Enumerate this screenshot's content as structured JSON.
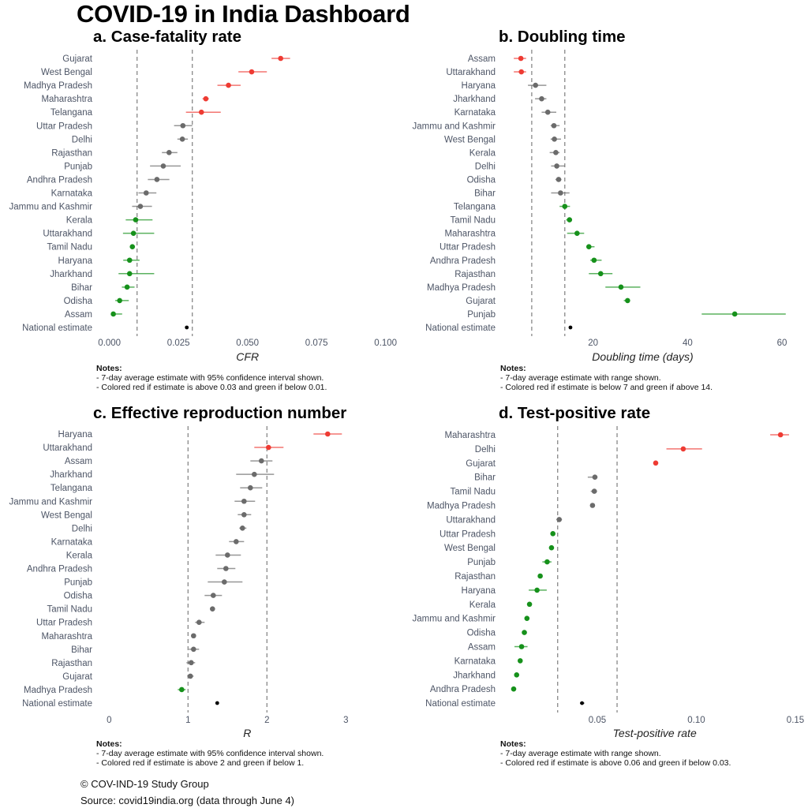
{
  "title": "COVID-19 in India Dashboard",
  "footer": {
    "credit": "© COV-IND-19 Study Group",
    "source": "Source: covid19india.org (data through June  4)"
  },
  "colors": {
    "red": "#ee3b33",
    "green": "#16911b",
    "gray": "#6b6b6b",
    "national": "#000000",
    "threshold": "#888888"
  },
  "chart_data": [
    {
      "id": "a",
      "type": "scatter",
      "title": "a. Case-fatality rate",
      "xlabel": "CFR",
      "xlim": [
        0,
        0.1
      ],
      "ticks": [
        0.0,
        0.025,
        0.05,
        0.075,
        0.1
      ],
      "tick_labels": [
        "0.000",
        "0.025",
        "0.050",
        "0.075",
        "0.100"
      ],
      "thresholds": [
        0.01,
        0.03
      ],
      "notes_head": "Notes:",
      "notes": [
        "- 7-day average estimate with 95% confidence interval shown.",
        "- Colored red if estimate is above 0.03 and green if below 0.01."
      ],
      "rows": [
        {
          "label": "Gujarat",
          "value": 0.062,
          "lo": 0.0587,
          "hi": 0.0654,
          "status": "red"
        },
        {
          "label": "West Bengal",
          "value": 0.0515,
          "lo": 0.0467,
          "hi": 0.057,
          "status": "red"
        },
        {
          "label": "Madhya Pradesh",
          "value": 0.0431,
          "lo": 0.0391,
          "hi": 0.0475,
          "status": "red"
        },
        {
          "label": "Maharashtra",
          "value": 0.0349,
          "lo": 0.0337,
          "hi": 0.036,
          "status": "red"
        },
        {
          "label": "Telangana",
          "value": 0.0333,
          "lo": 0.0277,
          "hi": 0.0403,
          "status": "red"
        },
        {
          "label": "Uttar Pradesh",
          "value": 0.0266,
          "lo": 0.0234,
          "hi": 0.03,
          "status": "gray"
        },
        {
          "label": "Delhi",
          "value": 0.0264,
          "lo": 0.0246,
          "hi": 0.0284,
          "status": "gray"
        },
        {
          "label": "Rajasthan",
          "value": 0.0216,
          "lo": 0.019,
          "hi": 0.0246,
          "status": "gray"
        },
        {
          "label": "Punjab",
          "value": 0.0195,
          "lo": 0.0147,
          "hi": 0.0258,
          "status": "gray"
        },
        {
          "label": "Andhra Pradesh",
          "value": 0.0172,
          "lo": 0.0139,
          "hi": 0.0217,
          "status": "gray"
        },
        {
          "label": "Karnataka",
          "value": 0.0133,
          "lo": 0.0105,
          "hi": 0.017,
          "status": "gray"
        },
        {
          "label": "Jammu and Kashmir",
          "value": 0.0112,
          "lo": 0.0082,
          "hi": 0.0154,
          "status": "gray"
        },
        {
          "label": "Kerala",
          "value": 0.0095,
          "lo": 0.0059,
          "hi": 0.0156,
          "status": "green"
        },
        {
          "label": "Uttarakhand",
          "value": 0.0087,
          "lo": 0.0049,
          "hi": 0.0162,
          "status": "green"
        },
        {
          "label": "Tamil Nadu",
          "value": 0.0083,
          "lo": 0.0074,
          "hi": 0.0091,
          "status": "green"
        },
        {
          "label": "Haryana",
          "value": 0.0073,
          "lo": 0.005,
          "hi": 0.0109,
          "status": "green"
        },
        {
          "label": "Jharkhand",
          "value": 0.0073,
          "lo": 0.0033,
          "hi": 0.0162,
          "status": "green"
        },
        {
          "label": "Bihar",
          "value": 0.0064,
          "lo": 0.0045,
          "hi": 0.0091,
          "status": "green"
        },
        {
          "label": "Odisha",
          "value": 0.0037,
          "lo": 0.0021,
          "hi": 0.007,
          "status": "green"
        },
        {
          "label": "Assam",
          "value": 0.0014,
          "lo": 0.0007,
          "hi": 0.0046,
          "status": "green"
        },
        {
          "label": "National estimate",
          "value": 0.028,
          "lo": 0.0277,
          "hi": 0.0283,
          "status": "national"
        }
      ]
    },
    {
      "id": "b",
      "type": "scatter",
      "title": "b. Doubling time",
      "xlabel": "Doubling time (days)",
      "xlim": [
        0,
        61
      ],
      "ticks": [
        20,
        40,
        60
      ],
      "tick_labels": [
        "20",
        "40",
        "60"
      ],
      "thresholds": [
        7,
        14
      ],
      "notes_head": "Notes:",
      "notes": [
        "- 7-day average estimate with range shown.",
        "- Colored red if estimate is below 7 and green if above 14."
      ],
      "rows": [
        {
          "label": "Assam",
          "value": 4.7,
          "lo": 3.2,
          "hi": 5.8,
          "status": "red"
        },
        {
          "label": "Uttarakhand",
          "value": 4.8,
          "lo": 3.2,
          "hi": 5.8,
          "status": "red"
        },
        {
          "label": "Haryana",
          "value": 7.8,
          "lo": 6.2,
          "hi": 10.1,
          "status": "gray"
        },
        {
          "label": "Jharkhand",
          "value": 9.1,
          "lo": 7.7,
          "hi": 10.1,
          "status": "gray"
        },
        {
          "label": "Karnataka",
          "value": 10.4,
          "lo": 9.1,
          "hi": 12.2,
          "status": "gray"
        },
        {
          "label": "Jammu and Kashmir",
          "value": 11.7,
          "lo": 11.0,
          "hi": 12.9,
          "status": "gray"
        },
        {
          "label": "West Bengal",
          "value": 11.8,
          "lo": 11.0,
          "hi": 13.2,
          "status": "gray"
        },
        {
          "label": "Kerala",
          "value": 12.1,
          "lo": 10.8,
          "hi": 12.9,
          "status": "gray"
        },
        {
          "label": "Delhi",
          "value": 12.3,
          "lo": 11.1,
          "hi": 14.0,
          "status": "gray"
        },
        {
          "label": "Odisha",
          "value": 12.7,
          "lo": 12.0,
          "hi": 13.3,
          "status": "gray"
        },
        {
          "label": "Bihar",
          "value": 13.1,
          "lo": 11.1,
          "hi": 15.0,
          "status": "gray"
        },
        {
          "label": "Telangana",
          "value": 14.0,
          "lo": 12.9,
          "hi": 15.1,
          "status": "green"
        },
        {
          "label": "Tamil Nadu",
          "value": 15.0,
          "lo": 14.3,
          "hi": 15.4,
          "status": "green"
        },
        {
          "label": "Maharashtra",
          "value": 16.6,
          "lo": 14.5,
          "hi": 18.1,
          "status": "green"
        },
        {
          "label": "Uttar Pradesh",
          "value": 19.1,
          "lo": 18.7,
          "hi": 20.3,
          "status": "green"
        },
        {
          "label": "Andhra Pradesh",
          "value": 20.2,
          "lo": 19.4,
          "hi": 21.8,
          "status": "green"
        },
        {
          "label": "Rajasthan",
          "value": 21.6,
          "lo": 19.1,
          "hi": 24.1,
          "status": "green"
        },
        {
          "label": "Madhya Pradesh",
          "value": 25.9,
          "lo": 22.6,
          "hi": 30.0,
          "status": "green"
        },
        {
          "label": "Gujarat",
          "value": 27.3,
          "lo": 26.5,
          "hi": 27.8,
          "status": "green"
        },
        {
          "label": "Punjab",
          "value": 50.0,
          "lo": 43.0,
          "hi": 60.8,
          "status": "green"
        },
        {
          "label": "National estimate",
          "value": 15.2,
          "lo": 15.0,
          "hi": 15.4,
          "status": "national"
        }
      ]
    },
    {
      "id": "c",
      "type": "scatter",
      "title": "c. Effective reproduction number",
      "xlabel": "R",
      "xlim": [
        0,
        3.5
      ],
      "ticks": [
        0,
        1,
        2,
        3
      ],
      "tick_labels": [
        "0",
        "1",
        "2",
        "3"
      ],
      "thresholds": [
        1,
        2
      ],
      "notes_head": "Notes:",
      "notes": [
        "- 7-day average estimate with 95% confidence interval shown.",
        "- Colored red if estimate is above 2 and green if below 1."
      ],
      "rows": [
        {
          "label": "Haryana",
          "value": 2.77,
          "lo": 2.59,
          "hi": 2.95,
          "status": "red"
        },
        {
          "label": "Uttarakhand",
          "value": 2.02,
          "lo": 1.84,
          "hi": 2.21,
          "status": "red"
        },
        {
          "label": "Assam",
          "value": 1.93,
          "lo": 1.79,
          "hi": 2.07,
          "status": "gray"
        },
        {
          "label": "Jharkhand",
          "value": 1.84,
          "lo": 1.61,
          "hi": 2.09,
          "status": "gray"
        },
        {
          "label": "Telangana",
          "value": 1.79,
          "lo": 1.66,
          "hi": 1.94,
          "status": "gray"
        },
        {
          "label": "Jammu and Kashmir",
          "value": 1.71,
          "lo": 1.59,
          "hi": 1.85,
          "status": "gray"
        },
        {
          "label": "West Bengal",
          "value": 1.71,
          "lo": 1.63,
          "hi": 1.8,
          "status": "gray"
        },
        {
          "label": "Delhi",
          "value": 1.69,
          "lo": 1.65,
          "hi": 1.74,
          "status": "gray"
        },
        {
          "label": "Karnataka",
          "value": 1.61,
          "lo": 1.52,
          "hi": 1.71,
          "status": "gray"
        },
        {
          "label": "Kerala",
          "value": 1.5,
          "lo": 1.35,
          "hi": 1.67,
          "status": "gray"
        },
        {
          "label": "Andhra Pradesh",
          "value": 1.48,
          "lo": 1.37,
          "hi": 1.6,
          "status": "gray"
        },
        {
          "label": "Punjab",
          "value": 1.46,
          "lo": 1.25,
          "hi": 1.69,
          "status": "gray"
        },
        {
          "label": "Odisha",
          "value": 1.32,
          "lo": 1.21,
          "hi": 1.43,
          "status": "gray"
        },
        {
          "label": "Tamil Nadu",
          "value": 1.31,
          "lo": 1.29,
          "hi": 1.34,
          "status": "gray"
        },
        {
          "label": "Uttar Pradesh",
          "value": 1.14,
          "lo": 1.09,
          "hi": 1.21,
          "status": "gray"
        },
        {
          "label": "Maharashtra",
          "value": 1.07,
          "lo": 1.05,
          "hi": 1.09,
          "status": "gray"
        },
        {
          "label": "Bihar",
          "value": 1.07,
          "lo": 1.01,
          "hi": 1.14,
          "status": "gray"
        },
        {
          "label": "Rajasthan",
          "value": 1.04,
          "lo": 0.98,
          "hi": 1.09,
          "status": "gray"
        },
        {
          "label": "Gujarat",
          "value": 1.03,
          "lo": 0.99,
          "hi": 1.07,
          "status": "gray"
        },
        {
          "label": "Madhya Pradesh",
          "value": 0.92,
          "lo": 0.87,
          "hi": 0.97,
          "status": "green"
        },
        {
          "label": "National estimate",
          "value": 1.37,
          "lo": 1.35,
          "hi": 1.39,
          "status": "national"
        }
      ]
    },
    {
      "id": "d",
      "type": "scatter",
      "title": "d. Test-positive rate",
      "xlabel": "Test-positive rate",
      "xlim": [
        0,
        0.15
      ],
      "ticks": [
        0.05,
        0.1,
        0.15
      ],
      "tick_labels": [
        "0.05",
        "0.10",
        "0.15"
      ],
      "thresholds": [
        0.03,
        0.06
      ],
      "notes_head": "Notes:",
      "notes": [
        "- 7-day average estimate with range shown.",
        "- Colored red if estimate is above 0.06 and green if below 0.03."
      ],
      "rows": [
        {
          "label": "Maharashtra",
          "value": 0.1425,
          "lo": 0.1373,
          "hi": 0.1468,
          "status": "red"
        },
        {
          "label": "Delhi",
          "value": 0.0934,
          "lo": 0.0849,
          "hi": 0.1029,
          "status": "red"
        },
        {
          "label": "Gujarat",
          "value": 0.0795,
          "lo": 0.0793,
          "hi": 0.0797,
          "status": "red"
        },
        {
          "label": "Bihar",
          "value": 0.0488,
          "lo": 0.0452,
          "hi": 0.0501,
          "status": "gray"
        },
        {
          "label": "Tamil Nadu",
          "value": 0.0485,
          "lo": 0.0467,
          "hi": 0.0499,
          "status": "gray"
        },
        {
          "label": "Madhya Pradesh",
          "value": 0.0476,
          "lo": 0.0464,
          "hi": 0.0488,
          "status": "gray"
        },
        {
          "label": "Uttarakhand",
          "value": 0.0308,
          "lo": 0.0293,
          "hi": 0.0322,
          "status": "gray"
        },
        {
          "label": "Uttar Pradesh",
          "value": 0.0276,
          "lo": 0.0266,
          "hi": 0.0286,
          "status": "green"
        },
        {
          "label": "West Bengal",
          "value": 0.0269,
          "lo": 0.026,
          "hi": 0.028,
          "status": "green"
        },
        {
          "label": "Punjab",
          "value": 0.0247,
          "lo": 0.0223,
          "hi": 0.0269,
          "status": "green"
        },
        {
          "label": "Rajasthan",
          "value": 0.0212,
          "lo": 0.021,
          "hi": 0.0214,
          "status": "green"
        },
        {
          "label": "Haryana",
          "value": 0.0196,
          "lo": 0.0154,
          "hi": 0.0245,
          "status": "green"
        },
        {
          "label": "Kerala",
          "value": 0.0158,
          "lo": 0.0156,
          "hi": 0.016,
          "status": "green"
        },
        {
          "label": "Jammu and Kashmir",
          "value": 0.0145,
          "lo": 0.0143,
          "hi": 0.0147,
          "status": "green"
        },
        {
          "label": "Odisha",
          "value": 0.0132,
          "lo": 0.0129,
          "hi": 0.0136,
          "status": "green"
        },
        {
          "label": "Assam",
          "value": 0.0118,
          "lo": 0.0082,
          "hi": 0.0148,
          "status": "green"
        },
        {
          "label": "Karnataka",
          "value": 0.0111,
          "lo": 0.0109,
          "hi": 0.0113,
          "status": "green"
        },
        {
          "label": "Jharkhand",
          "value": 0.0093,
          "lo": 0.0091,
          "hi": 0.0095,
          "status": "green"
        },
        {
          "label": "Andhra Pradesh",
          "value": 0.0078,
          "lo": 0.0076,
          "hi": 0.008,
          "status": "green"
        },
        {
          "label": "National estimate",
          "value": 0.0423,
          "lo": 0.0413,
          "hi": 0.0434,
          "status": "national"
        }
      ]
    }
  ]
}
